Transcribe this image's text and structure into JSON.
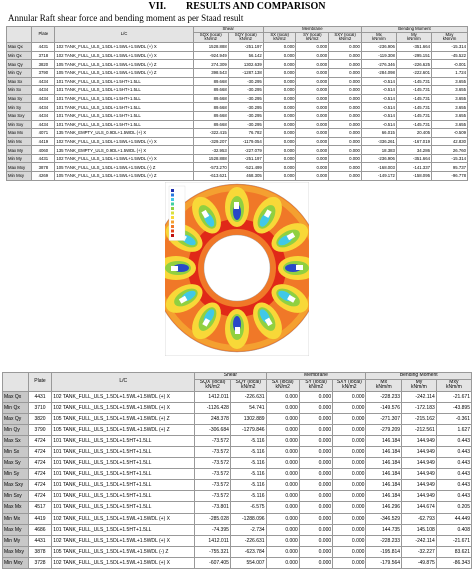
{
  "header": {
    "section_number": "VII.",
    "title": "RESULTS AND COMPARISON",
    "caption": "Annular Raft shear  force and bending moment as per Staad result"
  },
  "tables": [
    {
      "group_headers": [
        "Shear",
        "Membrane",
        "Bending Moment"
      ],
      "columns": [
        "Plate",
        "L/C",
        "SQX (local)",
        "SQY (local)",
        "SX (local)",
        "SY (local)",
        "SXY (local)",
        "Mx",
        "My",
        "Mxy"
      ],
      "units": [
        "kN/m2",
        "kN/m2",
        "kN/m2",
        "kN/m2",
        "kN/m2",
        "kNm/m",
        "kNm/m",
        "kNm/m"
      ],
      "rows": [
        [
          "Max Qx",
          "4431",
          "102 TANK_FULL_ULS_1.5DL+1.5WL+1.5WDL (+) X",
          "1528.888",
          "-251.197",
          "0.000",
          "0.000",
          "0.000",
          "-236.906",
          "-351.664",
          "-15.314"
        ],
        [
          "Min Qx",
          "3718",
          "102 TANK_FULL_ULS_1.5DL+1.5WL+1.5WDL (+) X",
          "-924.949",
          "56.142",
          "0.000",
          "0.000",
          "0.000",
          "-119.308",
          "-295.151",
          "-45.522"
        ],
        [
          "Max Qy",
          "3820",
          "105 TANK_FULL_ULS_1.5DL+1.5WL+1.5WDL (+) Z",
          "274.309",
          "1302.639",
          "0.000",
          "0.000",
          "0.000",
          "-276.346",
          "-226.625",
          "-0.001"
        ],
        [
          "Min Qy",
          "3790",
          "105 TANK_FULL_ULS_1.5DL+1.5WL+1.5WDL (+) Z",
          "398.543",
          "-1287.138",
          "0.000",
          "0.000",
          "0.000",
          "-284.098",
          "-222.601",
          "1.724"
        ],
        [
          "Max Sx",
          "4434",
          "101 TANK_FULL_ULS_1.5DL+1.5HT+1.5LL",
          "89.668",
          "-30.295",
          "0.000",
          "0.000",
          "0.000",
          "-0.514",
          "-145.731",
          "3.655"
        ],
        [
          "Min Sx",
          "4434",
          "101 TANK_FULL_ULS_1.5DL+1.5HT+1.5LL",
          "89.668",
          "-30.295",
          "0.000",
          "0.000",
          "0.000",
          "-0.514",
          "-145.731",
          "3.655"
        ],
        [
          "Max Sy",
          "4434",
          "101 TANK_FULL_ULS_1.5DL+1.5HT+1.5LL",
          "89.668",
          "-30.295",
          "0.000",
          "0.000",
          "0.000",
          "-0.514",
          "-145.731",
          "3.655"
        ],
        [
          "Min Sy",
          "4434",
          "101 TANK_FULL_ULS_1.5DL+1.5HT+1.5LL",
          "89.668",
          "-30.295",
          "0.000",
          "0.000",
          "0.000",
          "-0.514",
          "-145.731",
          "3.655"
        ],
        [
          "Max Sxy",
          "4434",
          "101 TANK_FULL_ULS_1.5DL+1.5HT+1.5LL",
          "89.668",
          "-30.295",
          "0.000",
          "0.000",
          "0.000",
          "-0.514",
          "-145.731",
          "3.655"
        ],
        [
          "Min Sxy",
          "4434",
          "101 TANK_FULL_ULS_1.5DL+1.5HT+1.5LL",
          "89.668",
          "-30.295",
          "0.000",
          "0.000",
          "0.000",
          "-0.514",
          "-145.731",
          "3.655"
        ],
        [
          "Max Mx",
          "4071",
          "135 TANK_EMPTY_ULS_0.9DL+1.5WDL (+) X",
          "-322.415",
          "76.782",
          "0.000",
          "0.000",
          "0.000",
          "66.015",
          "20.405",
          "-0.509"
        ],
        [
          "Min Mx",
          "4419",
          "102 TANK_FULL_ULS_1.5DL+1.5WL+1.5WDL (+) X",
          "-329.207",
          "-1179.054",
          "0.000",
          "0.000",
          "0.000",
          "-336.261",
          "-167.019",
          "42.830"
        ],
        [
          "Max My",
          "4060",
          "135 TANK_EMPTY_ULS_0.9DL+1.5WDL (+) X",
          "-32.953",
          "-227.079",
          "0.000",
          "0.000",
          "0.000",
          "18.383",
          "34.286",
          "26.760"
        ],
        [
          "Min My",
          "4431",
          "102 TANK_FULL_ULS_1.5DL+1.5WL+1.5WDL (+) X",
          "1528.888",
          "-251.197",
          "0.000",
          "0.000",
          "0.000",
          "-236.906",
          "-351.664",
          "-15.314"
        ],
        [
          "Max Mxy",
          "3878",
          "105 TANK_FULL_ULS_1.5DL+1.5WL+1.5WDL (-) Z",
          "-573.270",
          "-521.499",
          "0.000",
          "0.000",
          "0.000",
          "-168.003",
          "-141.337",
          "95.737"
        ],
        [
          "Min Mxy",
          "4269",
          "105 TANK_FULL_ULS_1.5DL+1.5WL+1.5WDL (+) Z",
          "-613.621",
          "468.305",
          "0.000",
          "0.000",
          "0.000",
          "-149.172",
          "-158.095",
          "-96.778"
        ]
      ]
    },
    {
      "group_headers": [
        "Shear",
        "Membrane",
        "Bending Moment"
      ],
      "columns": [
        "Plate",
        "L/C",
        "SQX (local)",
        "SQY (local)",
        "SX (local)",
        "SY (local)",
        "SXY (local)",
        "Mx",
        "My",
        "Mxy"
      ],
      "units": [
        "kN/m2",
        "kN/m2",
        "kN/m2",
        "kN/m2",
        "kN/m2",
        "kNm/m",
        "kNm/m",
        "kNm/m"
      ],
      "rows": [
        [
          "Max Qx",
          "4431",
          "102 TANK_FULL_ULS_1.5DL+1.5WL+1.5WDL (+) X",
          "1412.011",
          "-226.631",
          "0.000",
          "0.000",
          "0.000",
          "-228.233",
          "-242.114",
          "-21.671"
        ],
        [
          "Min Qx",
          "3710",
          "102 TANK_FULL_ULS_1.5DL+1.5WL+1.5WDL (+) X",
          "-1126.428",
          "54.741",
          "0.000",
          "0.000",
          "0.000",
          "-149.576",
          "-172.183",
          "-43.895"
        ],
        [
          "Max Qy",
          "3820",
          "105 TANK_FULL_ULS_1.5DL+1.5WL+1.5WDL (+) Z",
          "248.378",
          "1302.889",
          "0.000",
          "0.000",
          "0.000",
          "-271.307",
          "-215.162",
          "-0.361"
        ],
        [
          "Min Qy",
          "3790",
          "105 TANK_FULL_ULS_1.5DL+1.5WL+1.5WDL (+) Z",
          "-306.684",
          "-1279.846",
          "0.000",
          "0.000",
          "0.000",
          "-279.209",
          "-212.561",
          "1.627"
        ],
        [
          "Max Sx",
          "4724",
          "101 TANK_FULL_ULS_1.5DL+1.5HT+1.5LL",
          "-73.572",
          "-5.116",
          "0.000",
          "0.000",
          "0.000",
          "146.184",
          "144.949",
          "0.443"
        ],
        [
          "Min Sx",
          "4724",
          "101 TANK_FULL_ULS_1.5DL+1.5HT+1.5LL",
          "-73.572",
          "-5.116",
          "0.000",
          "0.000",
          "0.000",
          "146.184",
          "144.949",
          "0.443"
        ],
        [
          "Max Sy",
          "4724",
          "101 TANK_FULL_ULS_1.5DL+1.5HT+1.5LL",
          "-73.572",
          "-5.116",
          "0.000",
          "0.000",
          "0.000",
          "146.184",
          "144.949",
          "0.443"
        ],
        [
          "Min Sy",
          "4724",
          "101 TANK_FULL_ULS_1.5DL+1.5HT+1.5LL",
          "-73.572",
          "-5.116",
          "0.000",
          "0.000",
          "0.000",
          "146.184",
          "144.949",
          "0.443"
        ],
        [
          "Max Sxy",
          "4724",
          "101 TANK_FULL_ULS_1.5DL+1.5HT+1.5LL",
          "-73.572",
          "-5.116",
          "0.000",
          "0.000",
          "0.000",
          "146.184",
          "144.949",
          "0.443"
        ],
        [
          "Min Sxy",
          "4724",
          "101 TANK_FULL_ULS_1.5DL+1.5HT+1.5LL",
          "-73.572",
          "-5.116",
          "0.000",
          "0.000",
          "0.000",
          "146.184",
          "144.949",
          "0.443"
        ],
        [
          "Max Mx",
          "4517",
          "101 TANK_FULL_ULS_1.5DL+1.5HT+1.5LL",
          "-73.801",
          "-6.575",
          "0.000",
          "0.000",
          "0.000",
          "146.296",
          "144.674",
          "0.205"
        ],
        [
          "Min Mx",
          "4419",
          "102 TANK_FULL_ULS_1.5DL+1.5WL+1.5WDL (+) X",
          "-285.028",
          "-1288.096",
          "0.000",
          "0.000",
          "0.000",
          "-346.529",
          "-62.793",
          "44.449"
        ],
        [
          "Max My",
          "4686",
          "101 TANK_FULL_ULS_1.5DL+1.5HT+1.5LL",
          "-74.395",
          "-2.734",
          "0.000",
          "0.000",
          "0.000",
          "144.735",
          "145.108",
          "0.408"
        ],
        [
          "Min My",
          "4431",
          "102 TANK_FULL_ULS_1.5DL+1.5WL+1.5WDL (+) X",
          "1412.011",
          "-226.631",
          "0.000",
          "0.000",
          "0.000",
          "-228.233",
          "-242.114",
          "-21.671"
        ],
        [
          "Max Mxy",
          "3878",
          "105 TANK_FULL_ULS_1.5DL+1.5WL+1.5WDL (-) Z",
          "-755.321",
          "-623.784",
          "0.000",
          "0.000",
          "0.000",
          "-195.814",
          "-32.227",
          "83.621"
        ],
        [
          "Min Mxy",
          "3728",
          "102 TANK_FULL_ULS_1.5DL+1.5WL+1.5WDL (+) X",
          "-607.405",
          "554.007",
          "0.000",
          "0.000",
          "0.000",
          "-179.564",
          "-49.875",
          "-86.343"
        ]
      ]
    }
  ]
}
